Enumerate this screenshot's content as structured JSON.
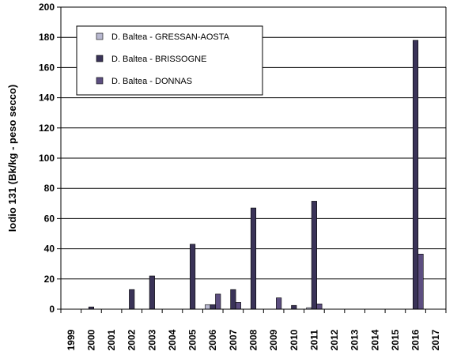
{
  "chart_data": {
    "type": "bar",
    "title": "",
    "xlabel": "",
    "ylabel": "Iodio 131  (Bk/kg - peso secco)",
    "ylim": [
      0,
      200
    ],
    "yticks": [
      0,
      20,
      40,
      60,
      80,
      100,
      120,
      140,
      160,
      180,
      200
    ],
    "grid": true,
    "legend_position": "top-left",
    "categories": [
      "1999",
      "2000",
      "2001",
      "2002",
      "2003",
      "2004",
      "2005",
      "2006",
      "2007",
      "2008",
      "2009",
      "2010",
      "2011",
      "2012",
      "2013",
      "2014",
      "2015",
      "2016",
      "2017"
    ],
    "series": [
      {
        "name": "D. Baltea - GRESSAN-AOSTA",
        "color": "#b8b8d0",
        "values": [
          0,
          0,
          0,
          0,
          0,
          0,
          0,
          3,
          0,
          0,
          0,
          0,
          1,
          0,
          0,
          0,
          0,
          0,
          0
        ]
      },
      {
        "name": "D. Baltea - BRISSOGNE",
        "color": "#3a3358",
        "values": [
          0,
          1.5,
          0,
          13,
          22,
          0,
          43,
          3,
          13,
          67,
          0,
          2.5,
          71.5,
          0,
          0,
          0,
          0,
          178,
          0
        ]
      },
      {
        "name": "D. Baltea - DONNAS",
        "color": "#5c4e80",
        "values": [
          0,
          0,
          0,
          0,
          0,
          0,
          0,
          10,
          4.5,
          0,
          7.5,
          0,
          3.5,
          0,
          0,
          0,
          0,
          36.5,
          0
        ]
      }
    ]
  }
}
